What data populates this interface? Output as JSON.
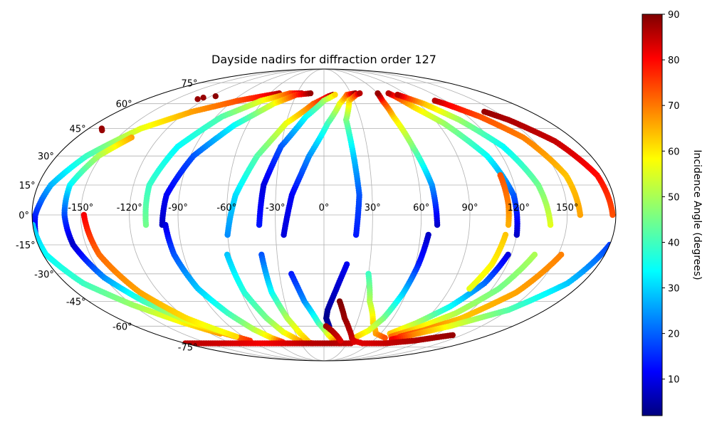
{
  "chart_data": {
    "type": "scatter",
    "projection": "mollweide",
    "title": "Dayside nadirs for diffraction order 127",
    "grid": true,
    "x_ticks": [
      "-150°",
      "-120°",
      "-90°",
      "-60°",
      "-30°",
      "0°",
      "30°",
      "60°",
      "90°",
      "120°",
      "150°"
    ],
    "x_tick_values": [
      -150,
      -120,
      -90,
      -60,
      -30,
      0,
      30,
      60,
      90,
      120,
      150
    ],
    "y_ticks": [
      "-75°",
      "-60°",
      "-45°",
      "-30°",
      "-15°",
      "0°",
      "15°",
      "30°",
      "45°",
      "60°",
      "75°"
    ],
    "y_tick_values": [
      -75,
      -60,
      -45,
      -30,
      -15,
      0,
      15,
      30,
      45,
      60,
      75
    ],
    "colorbar": {
      "label": "Incidence Angle (degrees)",
      "colormap": "jet",
      "min": 2,
      "max": 90,
      "ticks": [
        "10",
        "20",
        "30",
        "40",
        "50",
        "60",
        "70",
        "80",
        "90"
      ],
      "tick_values": [
        10,
        20,
        30,
        40,
        50,
        60,
        70,
        80,
        90
      ]
    },
    "series": [
      {
        "points": [
          [
            -180,
            -15,
            8
          ],
          [
            -178,
            0,
            15
          ],
          [
            -172,
            15,
            28
          ],
          [
            -160,
            30,
            40
          ],
          [
            -140,
            45,
            55
          ],
          [
            -115,
            55,
            65
          ],
          [
            -85,
            62,
            72
          ],
          [
            -65,
            65,
            78
          ],
          [
            -50,
            67,
            85
          ]
        ]
      },
      {
        "points": [
          [
            -180,
            -5,
            30
          ],
          [
            -178,
            -20,
            35
          ],
          [
            -168,
            -35,
            40
          ],
          [
            -150,
            -47,
            48
          ],
          [
            -128,
            -58,
            58
          ],
          [
            -110,
            -65,
            66
          ]
        ]
      },
      {
        "points": [
          [
            -140,
            40,
            65
          ],
          [
            -152,
            30,
            50
          ],
          [
            -160,
            15,
            35
          ],
          [
            -160,
            0,
            20
          ],
          [
            -158,
            -15,
            8
          ],
          [
            -150,
            -32,
            25
          ],
          [
            -138,
            -45,
            40
          ],
          [
            -122,
            -57,
            55
          ],
          [
            -105,
            -65,
            65
          ],
          [
            -90,
            -70,
            75
          ]
        ]
      },
      {
        "points": [
          [
            -148,
            0,
            80
          ],
          [
            -144,
            -20,
            70
          ],
          [
            -134,
            -40,
            65
          ],
          [
            -120,
            -55,
            60
          ],
          [
            -108,
            -62,
            55
          ],
          [
            -98,
            -67,
            60
          ]
        ]
      },
      {
        "points": [
          [
            -110,
            -5,
            45
          ],
          [
            -110,
            15,
            40
          ],
          [
            -102,
            35,
            35
          ],
          [
            -85,
            52,
            42
          ],
          [
            -62,
            62,
            55
          ],
          [
            -38,
            67,
            72
          ],
          [
            -25,
            67,
            85
          ]
        ]
      },
      {
        "points": [
          [
            -100,
            -5,
            8
          ],
          [
            -98,
            10,
            12
          ],
          [
            -88,
            30,
            20
          ],
          [
            -70,
            47,
            35
          ],
          [
            -48,
            60,
            55
          ],
          [
            -30,
            66,
            75
          ],
          [
            -15,
            67,
            88
          ]
        ]
      },
      {
        "points": [
          [
            -98,
            -5,
            10
          ],
          [
            -96,
            -20,
            20
          ],
          [
            -90,
            -38,
            30
          ],
          [
            -80,
            -52,
            40
          ],
          [
            -70,
            -62,
            50
          ],
          [
            -60,
            -68,
            60
          ],
          [
            -52,
            -71,
            75
          ]
        ]
      },
      {
        "points": [
          [
            -60,
            -10,
            25
          ],
          [
            -55,
            10,
            32
          ],
          [
            -45,
            30,
            42
          ],
          [
            -30,
            48,
            55
          ],
          [
            -10,
            60,
            70
          ],
          [
            5,
            65,
            82
          ],
          [
            10,
            66,
            88
          ]
        ]
      },
      {
        "points": [
          [
            -62,
            -20,
            30
          ],
          [
            -58,
            -40,
            38
          ],
          [
            -50,
            -55,
            45
          ],
          [
            -42,
            -64,
            55
          ],
          [
            -30,
            -70,
            65
          ],
          [
            -15,
            -72,
            78
          ]
        ]
      },
      {
        "points": [
          [
            -40,
            -5,
            15
          ],
          [
            -38,
            15,
            10
          ],
          [
            -30,
            35,
            20
          ],
          [
            -15,
            52,
            35
          ],
          [
            0,
            62,
            48
          ],
          [
            12,
            66,
            60
          ]
        ]
      },
      {
        "points": [
          [
            -40,
            -20,
            20
          ],
          [
            -38,
            -40,
            35
          ],
          [
            -32,
            -55,
            50
          ],
          [
            -25,
            -65,
            58
          ],
          [
            -20,
            -70,
            62
          ]
        ]
      },
      {
        "points": [
          [
            -25,
            -10,
            10
          ],
          [
            -20,
            10,
            12
          ],
          [
            -10,
            30,
            25
          ],
          [
            3,
            48,
            40
          ],
          [
            15,
            60,
            55
          ],
          [
            25,
            66,
            70
          ],
          [
            35,
            67,
            88
          ]
        ]
      },
      {
        "points": [
          [
            -22,
            -30,
            15
          ],
          [
            -15,
            -45,
            25
          ],
          [
            -5,
            -58,
            40
          ],
          [
            5,
            -66,
            55
          ],
          [
            12,
            -70,
            65
          ],
          [
            20,
            -72,
            75
          ]
        ]
      },
      {
        "points": [
          [
            20,
            -10,
            15
          ],
          [
            22,
            10,
            20
          ],
          [
            20,
            30,
            30
          ],
          [
            18,
            50,
            45
          ],
          [
            25,
            62,
            60
          ],
          [
            35,
            66,
            75
          ],
          [
            40,
            67,
            85
          ]
        ]
      },
      {
        "points": [
          [
            15,
            -25,
            12
          ],
          [
            8,
            -40,
            8
          ],
          [
            3,
            -50,
            5
          ],
          [
            2,
            -55,
            3
          ],
          [
            5,
            -60,
            5
          ]
        ]
      },
      {
        "points": [
          [
            30,
            -30,
            40
          ],
          [
            35,
            -45,
            50
          ],
          [
            45,
            -58,
            60
          ],
          [
            55,
            -65,
            65
          ],
          [
            70,
            -68,
            72
          ]
        ]
      },
      {
        "points": [
          [
            70,
            -5,
            8
          ],
          [
            68,
            15,
            25
          ],
          [
            62,
            35,
            45
          ],
          [
            58,
            52,
            60
          ],
          [
            58,
            62,
            75
          ],
          [
            60,
            67,
            88
          ]
        ]
      },
      {
        "points": [
          [
            65,
            -10,
            8
          ],
          [
            62,
            -25,
            15
          ],
          [
            58,
            -40,
            30
          ],
          [
            52,
            -55,
            45
          ],
          [
            45,
            -63,
            55
          ],
          [
            35,
            -68,
            62
          ]
        ]
      },
      {
        "points": [
          [
            120,
            -10,
            8
          ],
          [
            118,
            10,
            20
          ],
          [
            110,
            30,
            35
          ],
          [
            95,
            48,
            48
          ],
          [
            82,
            58,
            60
          ],
          [
            75,
            65,
            75
          ],
          [
            72,
            67,
            85
          ]
        ]
      },
      {
        "points": [
          [
            118,
            -20,
            10
          ],
          [
            112,
            -35,
            22
          ],
          [
            100,
            -48,
            35
          ],
          [
            85,
            -58,
            50
          ],
          [
            70,
            -65,
            62
          ]
        ]
      },
      {
        "points": [
          [
            140,
            -5,
            55
          ],
          [
            135,
            15,
            45
          ],
          [
            125,
            35,
            35
          ],
          [
            110,
            50,
            48
          ],
          [
            95,
            60,
            62
          ],
          [
            85,
            64,
            75
          ],
          [
            80,
            66,
            85
          ]
        ]
      },
      {
        "points": [
          [
            135,
            -20,
            50
          ],
          [
            125,
            -38,
            45
          ],
          [
            110,
            -52,
            50
          ],
          [
            90,
            -62,
            60
          ],
          [
            75,
            -67,
            70
          ]
        ]
      },
      {
        "points": [
          [
            158,
            0,
            65
          ],
          [
            155,
            20,
            62
          ],
          [
            145,
            40,
            68
          ],
          [
            130,
            52,
            72
          ],
          [
            115,
            60,
            80
          ],
          [
            110,
            62,
            85
          ]
        ]
      },
      {
        "points": [
          [
            152,
            -20,
            68
          ],
          [
            140,
            -40,
            65
          ],
          [
            120,
            -55,
            62
          ],
          [
            100,
            -63,
            68
          ],
          [
            85,
            -67,
            75
          ]
        ]
      },
      {
        "points": [
          [
            178,
            0,
            72
          ],
          [
            175,
            20,
            78
          ],
          [
            165,
            38,
            84
          ],
          [
            150,
            50,
            86
          ],
          [
            140,
            55,
            88
          ]
        ]
      },
      {
        "points": [
          [
            180,
            -15,
            18
          ],
          [
            170,
            -35,
            30
          ],
          [
            150,
            -50,
            42
          ],
          [
            120,
            -60,
            55
          ],
          [
            95,
            -66,
            68
          ],
          [
            80,
            -69,
            80
          ]
        ]
      },
      {
        "points": [
          [
            35,
            -70,
            80
          ],
          [
            50,
            -72,
            82
          ],
          [
            80,
            -72,
            84
          ],
          [
            110,
            -70,
            86
          ],
          [
            140,
            -66,
            88
          ]
        ]
      },
      {
        "points": [
          [
            -180,
            -72,
            85
          ],
          [
            -150,
            -72,
            84
          ],
          [
            -110,
            -72,
            82
          ],
          [
            -80,
            -72,
            80
          ],
          [
            -50,
            -72,
            82
          ],
          [
            -20,
            -72,
            85
          ],
          [
            10,
            -72,
            86
          ],
          [
            35,
            -72,
            84
          ]
        ]
      },
      {
        "points": [
          [
            12,
            -45,
            90
          ],
          [
            18,
            -55,
            88
          ],
          [
            25,
            -62,
            86
          ],
          [
            32,
            -68,
            84
          ],
          [
            38,
            -71,
            82
          ]
        ]
      },
      {
        "points": [
          [
            2,
            -60,
            88
          ],
          [
            8,
            -63,
            86
          ],
          [
            15,
            -67,
            84
          ],
          [
            20,
            -70,
            82
          ]
        ]
      },
      {
        "points": [
          [
            113,
            -10,
            62
          ],
          [
            110,
            -25,
            58
          ],
          [
            104,
            -38,
            55
          ]
        ]
      },
      {
        "points": [
          [
            113,
            20,
            72
          ],
          [
            114,
            5,
            68
          ],
          [
            114,
            -5,
            64
          ]
        ]
      }
    ],
    "isolated_points": [
      [
        -170,
        45,
        88
      ],
      [
        -168,
        44,
        88
      ],
      [
        -128,
        63,
        88
      ],
      [
        -125,
        64,
        88
      ],
      [
        -115,
        65,
        89
      ]
    ]
  }
}
